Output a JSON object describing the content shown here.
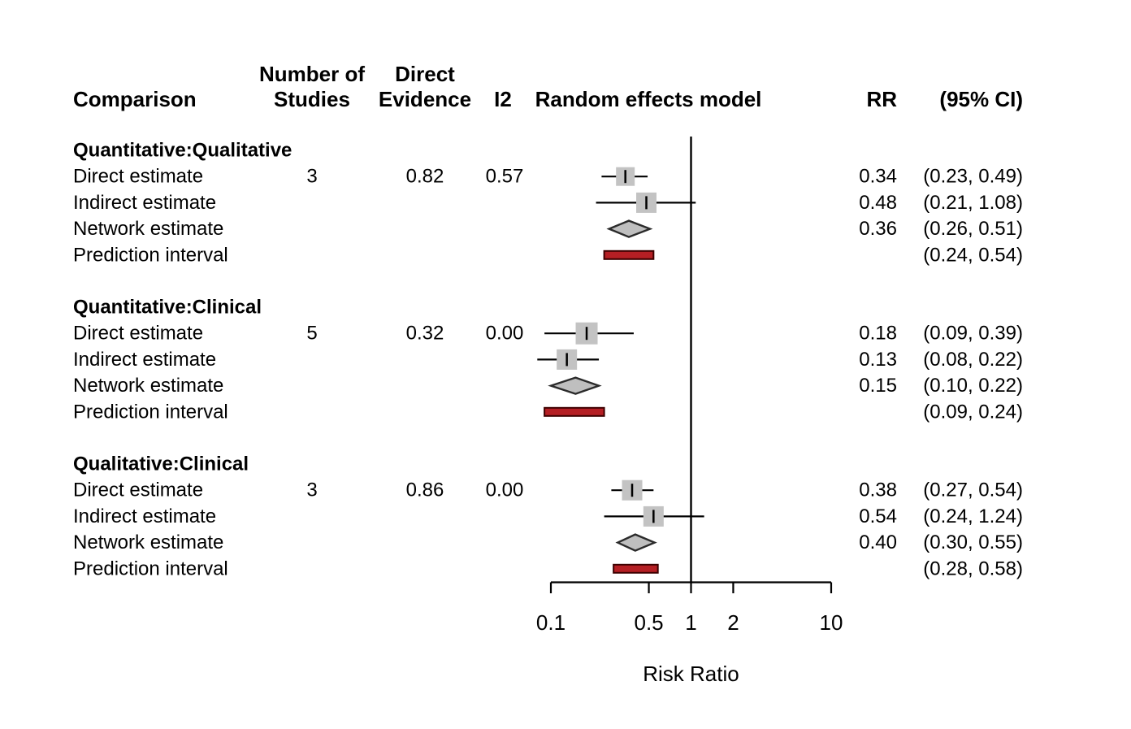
{
  "header": {
    "comparison": "Comparison",
    "studies_line1": "Number of",
    "studies_line2": "Studies",
    "evidence_line1": "Direct",
    "evidence_line2": "Evidence",
    "i2": "I2",
    "model": "Random effects model",
    "rr": "RR",
    "ci": "(95% CI)"
  },
  "colors": {
    "square_fill": "#c3c3c3",
    "diamond_fill": "#bfbfbf",
    "diamond_stroke": "#2b2b2b",
    "prediction_fill": "#b51f24",
    "prediction_stroke": "#3d0000",
    "group_label": "#ababab",
    "line": "#000000"
  },
  "chart_data": {
    "type": "forest",
    "scale": "log10",
    "xlabel": "Risk Ratio",
    "xlim": [
      0.1,
      10
    ],
    "ref_line": 1,
    "axis_ticks": [
      0.1,
      0.5,
      1,
      2,
      10
    ],
    "axis_tick_labels": [
      "0.1",
      "0.5",
      "1",
      "2",
      "10"
    ],
    "groups": [
      {
        "name": "Quantitative:Qualitative",
        "rows": [
          {
            "label": "Direct estimate",
            "studies": "3",
            "evidence": "0.82",
            "i2": "0.57",
            "marker": "square",
            "size": 23,
            "est": 0.34,
            "lower": 0.23,
            "upper": 0.49,
            "rr": "0.34",
            "ci": "(0.23, 0.49)"
          },
          {
            "label": "Indirect estimate",
            "marker": "square",
            "size": 25,
            "est": 0.48,
            "lower": 0.21,
            "upper": 1.08,
            "rr": "0.48",
            "ci": "(0.21, 1.08)"
          },
          {
            "label": "Network estimate",
            "marker": "diamond",
            "est": 0.36,
            "lower": 0.26,
            "upper": 0.51,
            "rr": "0.36",
            "ci": "(0.26, 0.51)"
          },
          {
            "label": "Prediction interval",
            "marker": "bar",
            "lower": 0.24,
            "upper": 0.54,
            "rr": "",
            "ci": "(0.24, 0.54)"
          }
        ]
      },
      {
        "name": "Quantitative:Clinical",
        "rows": [
          {
            "label": "Direct estimate",
            "studies": "5",
            "evidence": "0.32",
            "i2": "0.00",
            "marker": "square",
            "size": 27,
            "est": 0.18,
            "lower": 0.09,
            "upper": 0.39,
            "rr": "0.18",
            "ci": "(0.09, 0.39)"
          },
          {
            "label": "Indirect estimate",
            "marker": "square",
            "size": 25,
            "est": 0.13,
            "lower": 0.08,
            "upper": 0.22,
            "rr": "0.13",
            "ci": "(0.08, 0.22)"
          },
          {
            "label": "Network estimate",
            "marker": "diamond",
            "est": 0.15,
            "lower": 0.1,
            "upper": 0.22,
            "rr": "0.15",
            "ci": "(0.10, 0.22)"
          },
          {
            "label": "Prediction interval",
            "marker": "bar",
            "lower": 0.09,
            "upper": 0.24,
            "rr": "",
            "ci": "(0.09, 0.24)"
          }
        ]
      },
      {
        "name": "Qualitative:Clinical",
        "rows": [
          {
            "label": "Direct estimate",
            "studies": "3",
            "evidence": "0.86",
            "i2": "0.00",
            "marker": "square",
            "size": 25,
            "est": 0.38,
            "lower": 0.27,
            "upper": 0.54,
            "rr": "0.38",
            "ci": "(0.27, 0.54)"
          },
          {
            "label": "Indirect estimate",
            "marker": "square",
            "size": 25,
            "est": 0.54,
            "lower": 0.24,
            "upper": 1.24,
            "rr": "0.54",
            "ci": "(0.24, 1.24)"
          },
          {
            "label": "Network estimate",
            "marker": "diamond",
            "est": 0.4,
            "lower": 0.3,
            "upper": 0.55,
            "rr": "0.40",
            "ci": "(0.30, 0.55)"
          },
          {
            "label": "Prediction interval",
            "marker": "bar",
            "lower": 0.28,
            "upper": 0.58,
            "rr": "",
            "ci": "(0.28, 0.58)"
          }
        ]
      }
    ]
  }
}
